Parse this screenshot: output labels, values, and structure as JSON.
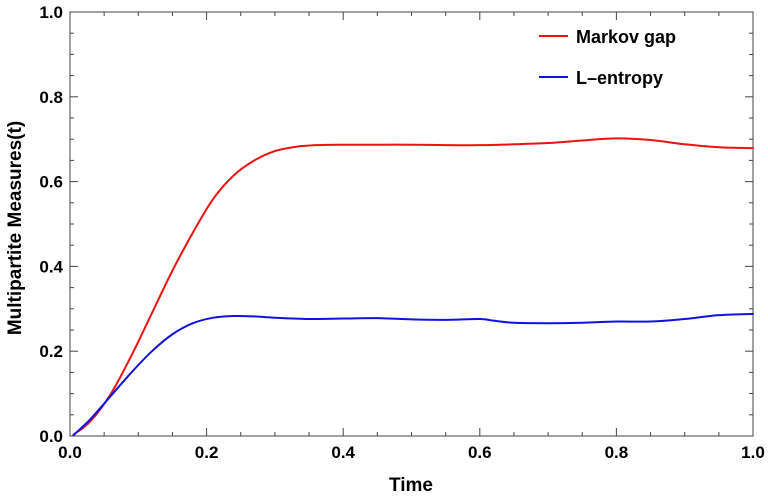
{
  "chart_data": {
    "type": "line",
    "title": "",
    "xlabel": "Time",
    "ylabel": "Multipartite Measures(t)",
    "xlim": [
      0,
      1
    ],
    "ylim": [
      0,
      1
    ],
    "xticks": [
      0.0,
      0.2,
      0.4,
      0.6,
      0.8,
      1.0
    ],
    "yticks": [
      0.0,
      0.2,
      0.4,
      0.6,
      0.8,
      1.0
    ],
    "xtick_labels": [
      "0.0",
      "0.2",
      "0.4",
      "0.6",
      "0.8",
      "1.0"
    ],
    "ytick_labels": [
      "0.0",
      "0.2",
      "0.4",
      "0.6",
      "0.8",
      "1.0"
    ],
    "grid": false,
    "legend_position": "top-right",
    "series": [
      {
        "name": "Markov gap",
        "color": "#ee1111",
        "x": [
          0.005,
          0.03,
          0.06,
          0.09,
          0.12,
          0.15,
          0.18,
          0.21,
          0.24,
          0.27,
          0.3,
          0.33,
          0.36,
          0.4,
          0.45,
          0.5,
          0.55,
          0.6,
          0.65,
          0.7,
          0.75,
          0.8,
          0.85,
          0.9,
          0.95,
          1.0
        ],
        "y": [
          0.003,
          0.035,
          0.1,
          0.19,
          0.29,
          0.39,
          0.48,
          0.56,
          0.615,
          0.65,
          0.672,
          0.682,
          0.686,
          0.687,
          0.687,
          0.687,
          0.686,
          0.686,
          0.688,
          0.691,
          0.697,
          0.702,
          0.698,
          0.688,
          0.681,
          0.679
        ]
      },
      {
        "name": "L–entropy",
        "color": "#1111dd",
        "x": [
          0.005,
          0.03,
          0.06,
          0.09,
          0.12,
          0.15,
          0.18,
          0.21,
          0.24,
          0.27,
          0.3,
          0.35,
          0.4,
          0.45,
          0.5,
          0.55,
          0.6,
          0.62,
          0.65,
          0.7,
          0.75,
          0.8,
          0.85,
          0.9,
          0.95,
          1.0
        ],
        "y": [
          0.002,
          0.04,
          0.095,
          0.15,
          0.2,
          0.24,
          0.266,
          0.279,
          0.283,
          0.282,
          0.279,
          0.276,
          0.277,
          0.278,
          0.275,
          0.274,
          0.276,
          0.272,
          0.267,
          0.266,
          0.267,
          0.27,
          0.27,
          0.276,
          0.285,
          0.288
        ]
      }
    ]
  }
}
